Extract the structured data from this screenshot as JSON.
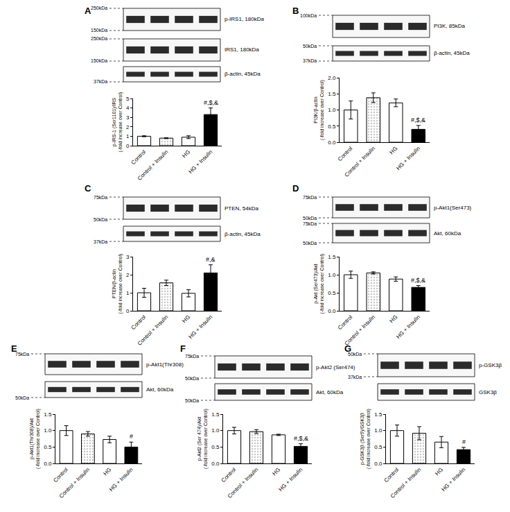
{
  "chart_data": [
    {
      "panel": "A",
      "type": "bar",
      "categories": [
        "Control",
        "Control + Insulin",
        "HG",
        "HG + Insulin"
      ],
      "values": [
        1.0,
        0.8,
        0.9,
        3.3
      ],
      "errors": [
        0.05,
        0.05,
        0.15,
        0.7
      ],
      "colors": [
        "#ffffff",
        "#c8c8c8",
        "#ffffff",
        "#000000"
      ],
      "ylabel": "p-IRS-1 (Ser1101)/IRS\n(-fold increase over Control)",
      "ylim": [
        0,
        5
      ],
      "yticks": [
        0,
        1,
        2,
        3,
        4,
        5
      ],
      "annotations": [
        {
          "category": "HG + Insulin",
          "text": "#,$,&"
        }
      ]
    },
    {
      "panel": "B",
      "type": "bar",
      "categories": [
        "Control",
        "Control + Insulin",
        "HG",
        "HG + Insulin"
      ],
      "values": [
        1.0,
        1.38,
        1.22,
        0.4
      ],
      "errors": [
        0.28,
        0.15,
        0.12,
        0.12
      ],
      "colors": [
        "#ffffff",
        "#c8c8c8",
        "#ffffff",
        "#000000"
      ],
      "ylabel": "PI3K/β-actin\n(-fold increase over Control)",
      "ylim": [
        0,
        2
      ],
      "yticks": [
        {
          "value": 0,
          "label": "0.0"
        },
        0.5,
        {
          "value": 1,
          "label": "1.0"
        },
        1.5,
        {
          "value": 2,
          "label": "2.0"
        }
      ],
      "annotations": [
        {
          "category": "HG + Insulin",
          "text": "#,$,&"
        }
      ]
    },
    {
      "panel": "C",
      "type": "bar",
      "categories": [
        "Control",
        "Control + Insulin",
        "HG",
        "HG + Insulin"
      ],
      "values": [
        1.0,
        1.55,
        0.97,
        2.1
      ],
      "errors": [
        0.25,
        0.15,
        0.2,
        0.45
      ],
      "colors": [
        "#ffffff",
        "#c8c8c8",
        "#ffffff",
        "#000000"
      ],
      "ylabel": "PTEN/β-actin\n(-fold increase over Control)",
      "ylim": [
        0,
        3
      ],
      "yticks": [
        0,
        1,
        2,
        3
      ],
      "annotations": [
        {
          "category": "HG + Insulin",
          "text": "#,&"
        }
      ]
    },
    {
      "panel": "D",
      "type": "bar",
      "categories": [
        "Control",
        "Control + Insulin",
        "HG",
        "HG + Insulin"
      ],
      "values": [
        1.0,
        1.05,
        0.88,
        0.65
      ],
      "errors": [
        0.1,
        0.03,
        0.06,
        0.05
      ],
      "colors": [
        "#ffffff",
        "#c8c8c8",
        "#ffffff",
        "#000000"
      ],
      "ylabel": "p-Akt (Ser473)/Akt\n(-fold increase over Control)",
      "ylim": [
        0,
        1.5
      ],
      "yticks": [
        {
          "value": 0,
          "label": "0.0"
        },
        0.5,
        {
          "value": 1,
          "label": "1.0"
        },
        1.5
      ],
      "annotations": [
        {
          "category": "HG + Insulin",
          "text": "#,$,&"
        }
      ]
    },
    {
      "panel": "E",
      "type": "bar",
      "categories": [
        "Control",
        "Control + Insulin",
        "HG",
        "HG + Insulin"
      ],
      "values": [
        1.0,
        0.9,
        0.73,
        0.5
      ],
      "errors": [
        0.15,
        0.07,
        0.1,
        0.15
      ],
      "colors": [
        "#ffffff",
        "#c8c8c8",
        "#ffffff",
        "#000000"
      ],
      "ylabel": "p-Akt1(Thr308)/Akt\n(-fold increase over Control)",
      "ylim": [
        0,
        1.5
      ],
      "yticks": [
        {
          "value": 0,
          "label": "0.0"
        },
        0.5,
        {
          "value": 1,
          "label": "1.0"
        },
        1.5
      ],
      "annotations": [
        {
          "category": "HG + Insulin",
          "text": "#"
        }
      ]
    },
    {
      "panel": "F",
      "type": "bar",
      "categories": [
        "Control",
        "Control + Insulin",
        "HG",
        "HG + Insulin"
      ],
      "values": [
        1.0,
        0.97,
        0.87,
        0.52
      ],
      "errors": [
        0.1,
        0.06,
        0.02,
        0.08
      ],
      "colors": [
        "#ffffff",
        "#c8c8c8",
        "#ffffff",
        "#000000"
      ],
      "ylabel": "p-Akt2 (Ser 474)/Akt\n(-fold increase over Control)",
      "ylim": [
        0,
        1.5
      ],
      "yticks": [
        {
          "value": 0,
          "label": "0.0"
        },
        0.5,
        {
          "value": 1,
          "label": "1.0"
        },
        1.5
      ],
      "annotations": [
        {
          "category": "HG + Insulin",
          "text": "#,$,&"
        }
      ]
    },
    {
      "panel": "G",
      "type": "bar",
      "categories": [
        "Control",
        "Control + Insulin",
        "HG",
        "HG + Insulin"
      ],
      "values": [
        1.0,
        0.92,
        0.65,
        0.42
      ],
      "errors": [
        0.17,
        0.2,
        0.17,
        0.07
      ],
      "colors": [
        "#ffffff",
        "#c8c8c8",
        "#ffffff",
        "#000000"
      ],
      "ylabel": "p-GSK3β (Ser9)/GSK3β\n(-fold increase over Control)",
      "ylim": [
        0,
        1.5
      ],
      "yticks": [
        {
          "value": 0,
          "label": "0.0"
        },
        0.5,
        {
          "value": 1,
          "label": "1.0"
        },
        1.5
      ],
      "annotations": [
        {
          "category": "HG + Insulin",
          "text": "#"
        }
      ]
    }
  ],
  "blots": [
    {
      "panel": "A",
      "rows": [
        {
          "label": "p-IRS1, 180kDa",
          "markers": [
            {
              "label": "250kDa",
              "side": "top"
            },
            {
              "label": "150kDa",
              "side": "bottom"
            }
          ]
        },
        {
          "label": "IRS1, 180kDa",
          "markers": [
            {
              "label": "250kDa",
              "side": "top"
            },
            {
              "label": "150kDa",
              "side": "bottom"
            }
          ]
        },
        {
          "label": "β-actin, 45kDa",
          "markers": [
            {
              "label": "37kDa",
              "side": "bottom"
            }
          ]
        }
      ]
    },
    {
      "panel": "B",
      "rows": [
        {
          "label": "PI3K, 85kDa",
          "markers": [
            {
              "label": "100kDa",
              "side": "top"
            }
          ]
        },
        {
          "label": "β-actin, 45kDa",
          "markers": [
            {
              "label": "50kDa",
              "side": "top"
            },
            {
              "label": "37kDa",
              "side": "bottom"
            }
          ]
        }
      ]
    },
    {
      "panel": "C",
      "rows": [
        {
          "label": "PTEN, 54kDa",
          "markers": [
            {
              "label": "75kDa",
              "side": "top"
            },
            {
              "label": "50kDa",
              "side": "bottom"
            }
          ]
        },
        {
          "label": "β-actin, 45kDa",
          "markers": [
            {
              "label": "37kDa",
              "side": "bottom"
            }
          ]
        }
      ]
    },
    {
      "panel": "D",
      "rows": [
        {
          "label": "p-Akt1(Ser473)",
          "markers": [
            {
              "label": "75kDa",
              "side": "top"
            },
            {
              "label": "50kDa",
              "side": "bottom"
            }
          ]
        },
        {
          "label": "Akt, 60kDa",
          "markers": [
            {
              "label": "75kDa",
              "side": "top"
            },
            {
              "label": "50kDa",
              "side": "bottom"
            }
          ]
        }
      ]
    },
    {
      "panel": "E",
      "rows": [
        {
          "label": "p-Akt1(Thr308)",
          "markers": [
            {
              "label": "75kDa",
              "side": "top"
            }
          ]
        },
        {
          "label": "Akt, 60kDa",
          "markers": [
            {
              "label": "50kDa",
              "side": "bottom"
            }
          ]
        }
      ]
    },
    {
      "panel": "F",
      "rows": [
        {
          "label": "p-Akt2 (Ser474)",
          "markers": [
            {
              "label": "75kDa",
              "side": "top"
            },
            {
              "label": "50kDa",
              "side": "bottom"
            }
          ]
        },
        {
          "label": "Akt, 60kDa",
          "markers": [
            {
              "label": "50kDa",
              "side": "bottom"
            }
          ]
        }
      ]
    },
    {
      "panel": "G",
      "rows": [
        {
          "label": "p-GSK3β",
          "markers": [
            {
              "label": "50kDa",
              "side": "top"
            },
            {
              "label": "37kDa",
              "side": "bottom"
            }
          ]
        },
        {
          "label": "GSK3β",
          "markers": []
        }
      ]
    }
  ]
}
